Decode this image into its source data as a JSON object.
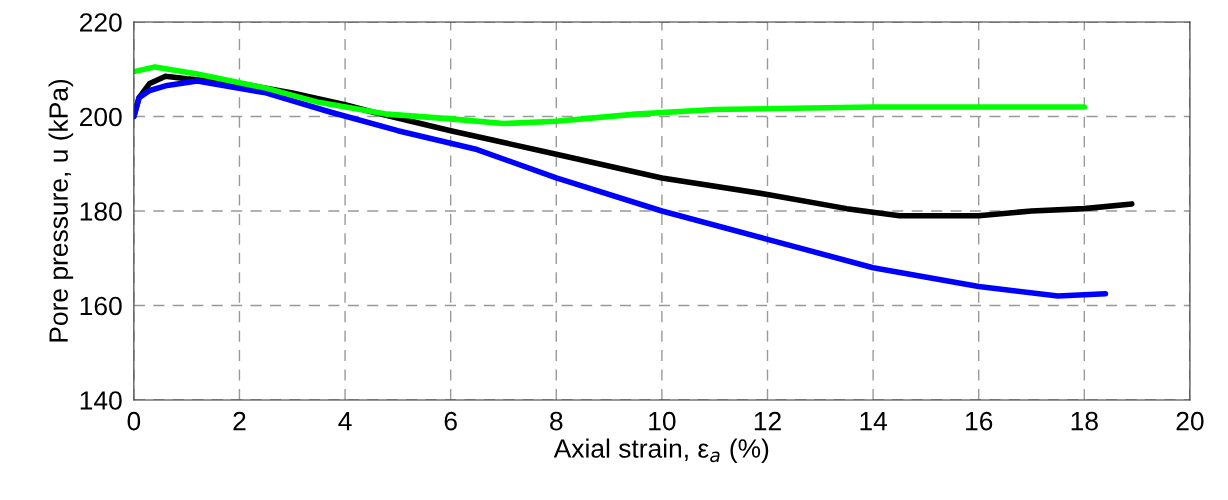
{
  "chart_data": {
    "type": "line",
    "xlabel": "Axial strain, ε$_{a}$ (%)",
    "ylabel": "Pore pressure, u (kPa)",
    "xlim": [
      0,
      20
    ],
    "ylim": [
      140,
      220
    ],
    "xticks": [
      0,
      2,
      4,
      6,
      8,
      10,
      12,
      14,
      16,
      18,
      20
    ],
    "yticks": [
      140,
      160,
      180,
      200,
      220
    ],
    "grid": true,
    "line_style": "solid",
    "marker": "none",
    "series": [
      {
        "color": "#000000",
        "x": [
          0,
          0.1,
          0.3,
          0.6,
          1.0,
          2,
          3,
          4,
          4.5,
          6,
          8,
          10,
          12,
          13.5,
          14.5,
          16,
          17,
          18,
          18.9
        ],
        "values": [
          200,
          204,
          207,
          208.5,
          208,
          207,
          205,
          202.5,
          201,
          197,
          192,
          187,
          183.5,
          180.5,
          179,
          179,
          180,
          180.5,
          181.5
        ]
      },
      {
        "color": "#0000ff",
        "x": [
          0,
          0.1,
          0.3,
          0.6,
          1.2,
          2.5,
          3.7,
          5,
          6.5,
          8,
          10,
          12,
          14,
          16,
          17.5,
          18.4
        ],
        "values": [
          200,
          204,
          205.5,
          206.5,
          207.5,
          205,
          201,
          197,
          193,
          187,
          180,
          174,
          168,
          164,
          162,
          162.5
        ]
      },
      {
        "color": "#00ff00",
        "x": [
          0,
          0.4,
          1.2,
          2.5,
          3.5,
          4.8,
          6,
          7,
          8,
          9.5,
          11,
          14,
          16,
          18
        ],
        "values": [
          209.5,
          210.5,
          209,
          206,
          203,
          200.5,
          199.5,
          198.5,
          199,
          200.5,
          201.5,
          202,
          202,
          202
        ]
      }
    ]
  }
}
